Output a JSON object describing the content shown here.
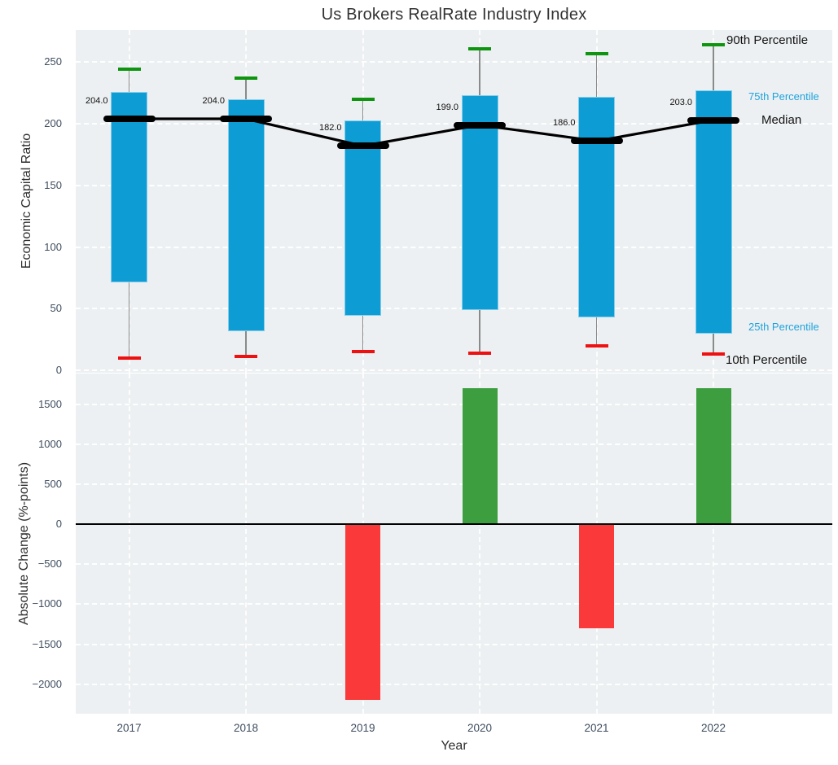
{
  "title": "Us Brokers RealRate Industry Index",
  "xlabel": "Year",
  "annotations": {
    "p90": "90th Percentile",
    "p75": "75th Percentile",
    "median": "Median",
    "p25": "25th Percentile",
    "p10": "10th Percentile"
  },
  "colors": {
    "box_blue": "#0d9dd4",
    "cap_green": "#0f940f",
    "cap_red": "#ee1111",
    "bar_green": "#3d9e3f",
    "bar_red": "#fa3a3a",
    "median_black": "#000000",
    "panel_bg": "#edf0f2",
    "tick_text": "#3e4d5f",
    "blue_label_text": "#1fa3dc"
  },
  "chart_data": [
    {
      "type": "box-percentile",
      "title": "Us Brokers RealRate Industry Index",
      "ylabel": "Economic Capital Ratio",
      "categories": [
        "2017",
        "2018",
        "2019",
        "2020",
        "2021",
        "2022"
      ],
      "series": [
        {
          "name": "Median",
          "values": [
            204.0,
            204.0,
            182.0,
            199.0,
            186.0,
            203.0
          ]
        },
        {
          "name": "75th Percentile",
          "values": [
            226,
            220,
            203,
            223,
            222,
            227
          ]
        },
        {
          "name": "25th Percentile",
          "values": [
            71,
            32,
            44,
            49,
            43,
            30
          ]
        },
        {
          "name": "90th Percentile",
          "values": [
            244,
            237,
            220,
            261,
            257,
            264
          ]
        },
        {
          "name": "10th Percentile",
          "values": [
            10,
            11,
            15,
            14,
            20,
            13
          ]
        }
      ],
      "median_labels": [
        "204.0",
        "204.0",
        "182.0",
        "199.0",
        "186.0",
        "203.0"
      ],
      "yticks": [
        0,
        50,
        100,
        150,
        200,
        250
      ],
      "ylim": [
        -2,
        276
      ],
      "grid": true,
      "legend_position": "right-annotations"
    },
    {
      "type": "bar",
      "ylabel": "Absolute Change (%-points)",
      "categories": [
        "2017",
        "2018",
        "2019",
        "2020",
        "2021",
        "2022"
      ],
      "values": [
        0,
        0,
        -2200,
        1700,
        -1300,
        1700
      ],
      "yticks": [
        1500,
        1000,
        500,
        0,
        -500,
        -1000,
        -1500,
        -2000
      ],
      "ylim": [
        -2370,
        1885
      ],
      "grid": true
    }
  ]
}
